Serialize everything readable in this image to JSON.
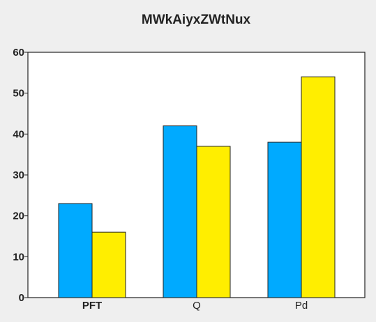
{
  "chart_data": {
    "type": "bar",
    "title": "MWkAiyxZWtNux",
    "xlabel": "",
    "ylabel": "",
    "categories": [
      "PFT",
      "Q",
      "Pd"
    ],
    "series": [
      {
        "values": [
          23,
          42,
          38
        ],
        "color": "#00aaff"
      },
      {
        "values": [
          16,
          37,
          54
        ],
        "color": "#ffee00"
      }
    ],
    "ylim": [
      0,
      60
    ],
    "yticks": [
      0,
      10,
      20,
      30,
      40,
      50,
      60
    ],
    "grid": false,
    "legend": "none"
  }
}
